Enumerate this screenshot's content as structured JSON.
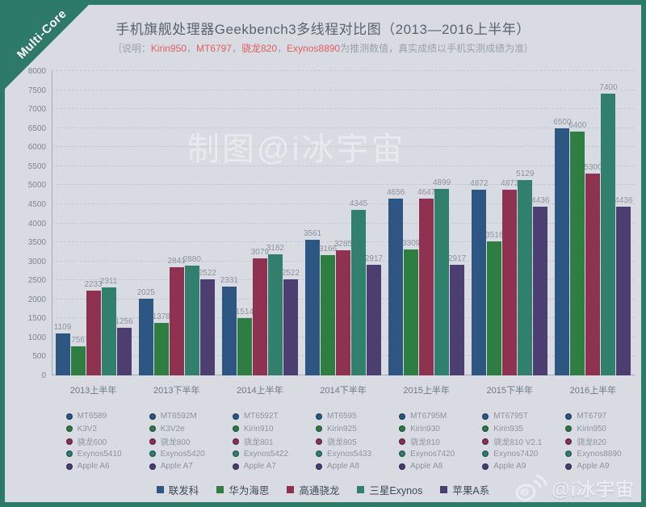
{
  "ribbon": {
    "label": "Multi-Core"
  },
  "header": {
    "title": "手机旗舰处理器Geekbench3多线程对比图（2013—2016上半年）",
    "subtitle_parts": [
      {
        "text": "｛说明：",
        "highlight": false
      },
      {
        "text": "Kirin950",
        "highlight": true
      },
      {
        "text": "，",
        "highlight": false
      },
      {
        "text": "MT6797",
        "highlight": true
      },
      {
        "text": "，",
        "highlight": false
      },
      {
        "text": "骁龙820",
        "highlight": true
      },
      {
        "text": "，",
        "highlight": false
      },
      {
        "text": "Exynos8890",
        "highlight": true
      },
      {
        "text": "为推测数值，真实成绩以手机实测成绩为准｝",
        "highlight": false
      }
    ]
  },
  "watermark": {
    "text": "制图@i冰宇宙"
  },
  "chart_data": {
    "type": "bar",
    "title": "手机旗舰处理器Geekbench3多线程对比图（2013—2016上半年）",
    "xlabel": "",
    "ylabel": "",
    "ylim": [
      0,
      8000
    ],
    "ytick_step": 500,
    "grid": true,
    "legend_position": "bottom",
    "categories": [
      "2013上半年",
      "2013下半年",
      "2014上半年",
      "2014下半年",
      "2015上半年",
      "2015下半年",
      "2016上半年"
    ],
    "series": [
      {
        "name": "联发科",
        "color": "#2e5682",
        "values": [
          1109,
          2025,
          2331,
          3561,
          4656,
          4872,
          6500
        ],
        "chips": [
          "MT6589",
          "MT6592M",
          "MT6592T",
          "MT6595",
          "MT6795M",
          "MT6795T",
          "MT6797"
        ]
      },
      {
        "name": "华为海思",
        "color": "#2e7d41",
        "values": [
          756,
          1378,
          1514,
          3166,
          3309,
          3516,
          6400
        ],
        "chips": [
          "K3V2",
          "K3V2e",
          "Kirin910",
          "Kirin925",
          "Kirin930",
          "Kirin935",
          "Kirin950"
        ]
      },
      {
        "name": "高通骁龙",
        "color": "#8f3150",
        "values": [
          2233,
          2841,
          3079,
          3285,
          4647,
          4873,
          5300
        ],
        "chips": [
          "骁龙600",
          "骁龙800",
          "骁龙801",
          "骁龙805",
          "骁龙810",
          "骁龙810 V2.1",
          "骁龙820"
        ]
      },
      {
        "name": "三星Exynos",
        "color": "#31806e",
        "values": [
          2311,
          2880,
          3182,
          4345,
          4899,
          5129,
          7400
        ],
        "chips": [
          "Exynos5410",
          "Exynos5420",
          "Exynos5422",
          "Exynos5433",
          "Exynos7420",
          "Exynos7420",
          "Exynos8890"
        ]
      },
      {
        "name": "苹果A系",
        "color": "#4c3e71",
        "values": [
          1256,
          2522,
          2522,
          2917,
          2917,
          4436,
          4436
        ],
        "chips": [
          "Apple A6",
          "Apple A7",
          "Apple A7",
          "Apple A8",
          "Apple A8",
          "Apple A9",
          "Apple A9"
        ]
      }
    ]
  },
  "footer": {
    "credit": "@i冰宇宙",
    "weibo_icon": "weibo-logo-icon"
  }
}
